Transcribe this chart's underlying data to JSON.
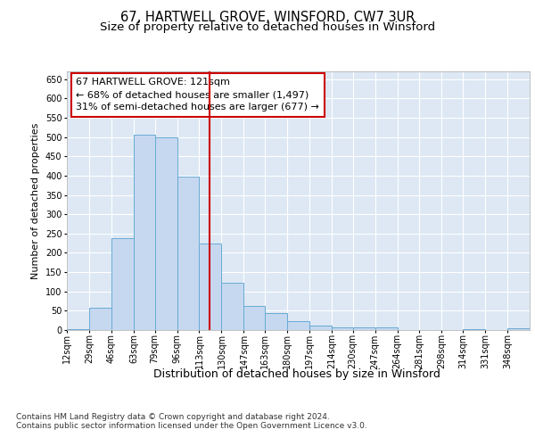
{
  "title_line1": "67, HARTWELL GROVE, WINSFORD, CW7 3UR",
  "title_line2": "Size of property relative to detached houses in Winsford",
  "xlabel": "Distribution of detached houses by size in Winsford",
  "ylabel": "Number of detached properties",
  "footnote1": "Contains HM Land Registry data © Crown copyright and database right 2024.",
  "footnote2": "Contains public sector information licensed under the Open Government Licence v3.0.",
  "annotation_line1": "67 HARTWELL GROVE: 121sqm",
  "annotation_line2": "← 68% of detached houses are smaller (1,497)",
  "annotation_line3": "31% of semi-detached houses are larger (677) →",
  "bar_labels": [
    "12sqm",
    "29sqm",
    "46sqm",
    "63sqm",
    "79sqm",
    "96sqm",
    "113sqm",
    "130sqm",
    "147sqm",
    "163sqm",
    "180sqm",
    "197sqm",
    "214sqm",
    "230sqm",
    "247sqm",
    "264sqm",
    "281sqm",
    "298sqm",
    "314sqm",
    "331sqm",
    "348sqm"
  ],
  "bar_values": [
    3,
    57,
    237,
    505,
    500,
    397,
    223,
    122,
    62,
    45,
    22,
    11,
    8,
    7,
    7,
    0,
    0,
    0,
    2,
    0,
    4
  ],
  "bar_edges": [
    12,
    29,
    46,
    63,
    79,
    96,
    113,
    130,
    147,
    163,
    180,
    197,
    214,
    230,
    247,
    264,
    281,
    298,
    314,
    331,
    348,
    365
  ],
  "bar_color": "#c5d8f0",
  "bar_edge_color": "#6aaad4",
  "vline_color": "#cc0000",
  "vline_x": 121,
  "ylim": [
    0,
    670
  ],
  "yticks": [
    0,
    50,
    100,
    150,
    200,
    250,
    300,
    350,
    400,
    450,
    500,
    550,
    600,
    650
  ],
  "bg_color": "#dde8f4",
  "title_fontsize": 10.5,
  "subtitle_fontsize": 9.5,
  "ylabel_fontsize": 8,
  "xlabel_fontsize": 9,
  "tick_fontsize": 7,
  "annot_fontsize": 8,
  "footnote_fontsize": 6.5
}
